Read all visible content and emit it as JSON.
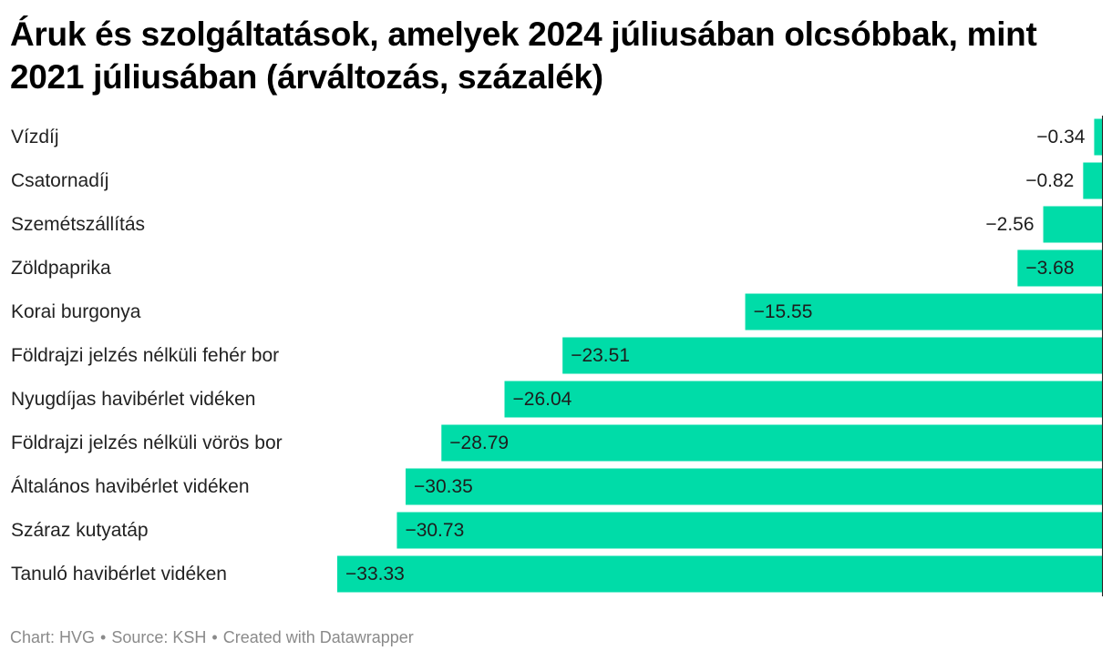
{
  "header": {
    "title": "Áruk és szolgáltatások, amelyek 2024 júliusában olcsóbbak, mint 2021 júliusában (árváltozás, százalék)"
  },
  "chart_data": {
    "type": "bar",
    "orientation": "horizontal",
    "title": "Áruk és szolgáltatások, amelyek 2024 júliusában olcsóbbak, mint 2021 júliusában (árváltozás, százalék)",
    "categories": [
      "Vízdíj",
      "Csatornadíj",
      "Szemétszállítás",
      "Zöldpaprika",
      "Korai burgonya",
      "Földrajzi jelzés nélküli fehér bor",
      "Nyugdíjas havibérlet vidéken",
      "Földrajzi jelzés nélküli vörös bor",
      "Általános havibérlet vidéken",
      "Száraz kutyatáp",
      "Tanuló havibérlet vidéken"
    ],
    "values": [
      -0.34,
      -0.82,
      -2.56,
      -3.68,
      -15.55,
      -23.51,
      -26.04,
      -28.79,
      -30.35,
      -30.73,
      -33.33
    ],
    "value_labels": [
      "−0.34",
      "−0.82",
      "−2.56",
      "−3.68",
      "−15.55",
      "−23.51",
      "−26.04",
      "−28.79",
      "−30.35",
      "−30.73",
      "−33.33"
    ],
    "xlim": [
      -33.33,
      0
    ],
    "bar_color": "#00dca8",
    "baseline_color": "#1d1d1d",
    "grid": false,
    "legend": "none"
  },
  "footer": {
    "chart_credit": "Chart: HVG",
    "source": "Source: KSH",
    "created_with": "Created with Datawrapper",
    "separator": "•"
  }
}
